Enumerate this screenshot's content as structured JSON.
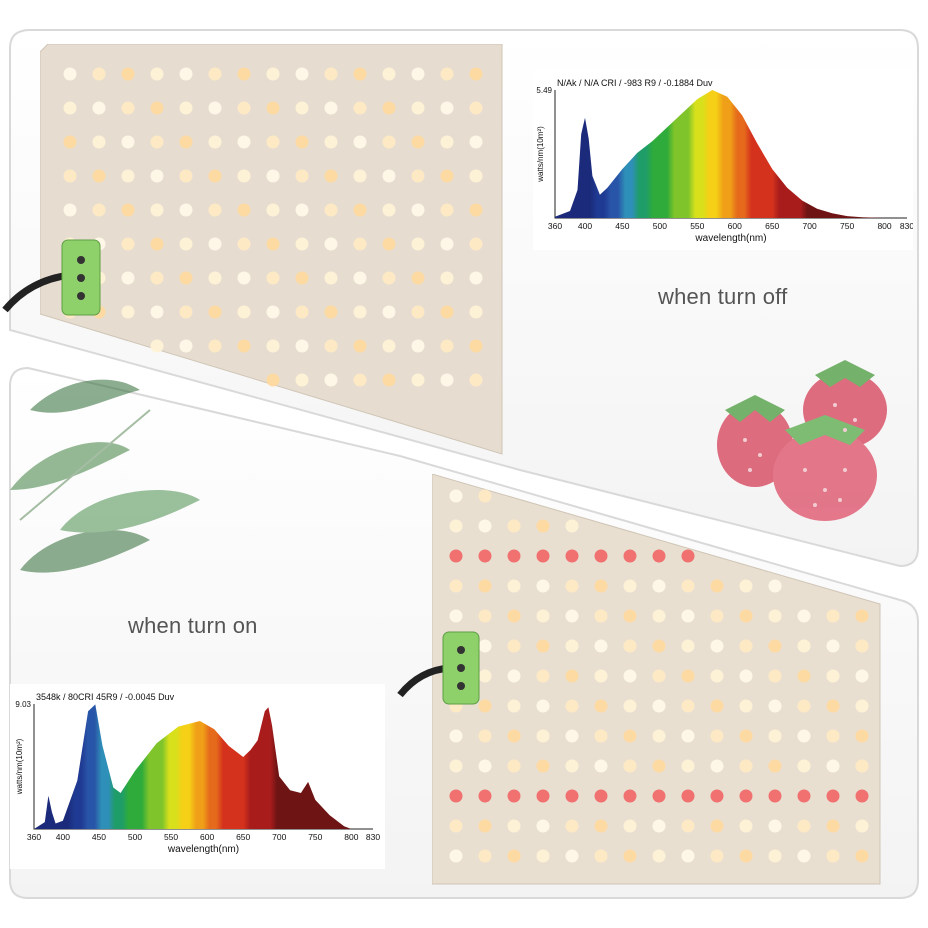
{
  "captions": {
    "off": "when turn off",
    "on": "when turn on"
  },
  "chart_data": [
    {
      "type": "area",
      "title": "N/Ak / N/A CRI / -983 R9 / -0.1884 Duv",
      "ylabel": "watts/nm(10m²)",
      "xlabel": "wavelength(nm)",
      "ymax_label": "5.49",
      "xlim": [
        360,
        830
      ],
      "ylim": [
        0,
        5.49
      ],
      "x_ticks": [
        360,
        400,
        450,
        500,
        550,
        600,
        650,
        700,
        750,
        800,
        830
      ],
      "x": [
        360,
        380,
        390,
        395,
        400,
        405,
        410,
        420,
        430,
        440,
        450,
        470,
        490,
        510,
        530,
        550,
        570,
        590,
        610,
        630,
        650,
        670,
        690,
        710,
        730,
        750,
        770,
        800
      ],
      "values": [
        0.05,
        0.3,
        1.2,
        3.6,
        4.3,
        3.4,
        1.8,
        1.0,
        1.3,
        1.7,
        2.1,
        2.8,
        3.3,
        3.9,
        4.5,
        5.1,
        5.49,
        5.2,
        4.4,
        3.2,
        2.1,
        1.3,
        0.75,
        0.4,
        0.2,
        0.08,
        0.03,
        0.0
      ]
    },
    {
      "type": "area",
      "title": "3548k / 80CRI 45R9 / -0.0045 Duv",
      "ylabel": "watts/nm(10m²)",
      "xlabel": "wavelength(nm)",
      "ymax_label": "9.03",
      "xlim": [
        360,
        830
      ],
      "ylim": [
        0,
        9.03
      ],
      "x_ticks": [
        360,
        400,
        450,
        500,
        550,
        600,
        650,
        700,
        750,
        800,
        830
      ],
      "x": [
        360,
        375,
        380,
        385,
        390,
        400,
        420,
        435,
        445,
        455,
        470,
        480,
        500,
        530,
        560,
        590,
        610,
        630,
        650,
        660,
        670,
        680,
        685,
        690,
        700,
        715,
        730,
        740,
        750,
        770,
        790,
        800
      ],
      "values": [
        0.0,
        0.5,
        2.4,
        1.2,
        0.4,
        0.6,
        3.5,
        8.5,
        9.0,
        6.0,
        3.0,
        2.6,
        4.2,
        6.2,
        7.4,
        7.8,
        7.2,
        6.0,
        5.2,
        5.7,
        6.4,
        8.5,
        8.8,
        7.5,
        3.8,
        2.8,
        2.6,
        3.4,
        2.1,
        1.0,
        0.2,
        0.0
      ]
    }
  ]
}
